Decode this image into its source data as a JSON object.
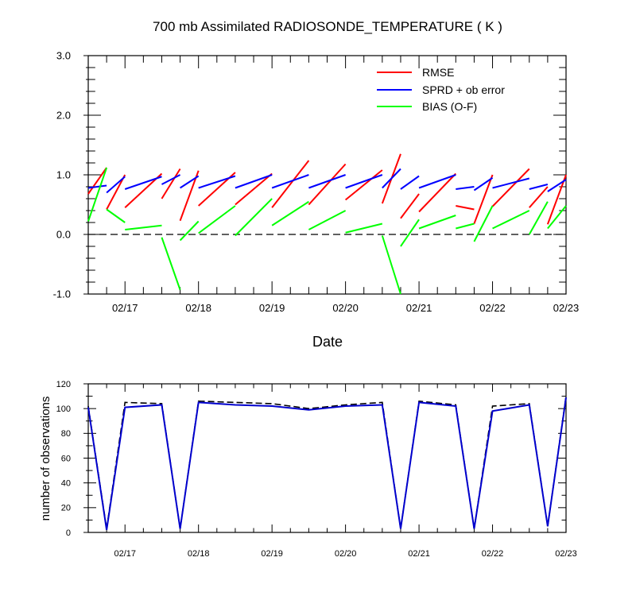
{
  "chart_data": [
    {
      "type": "line",
      "title": "700 mb Assimilated RADIOSONDE_TEMPERATURE ( K )",
      "xlabel": "Date",
      "ylabel": "",
      "xlim": [
        "02/16 12Z",
        "02/23 00Z"
      ],
      "ylim": [
        -1.0,
        3.0
      ],
      "yticks": [
        "-1.0",
        "0.0",
        "1.0",
        "2.0",
        "3.0"
      ],
      "xticks": [
        "02/17",
        "02/18",
        "02/19",
        "02/20",
        "02/21",
        "02/22",
        "02/23"
      ],
      "zero_reference_line": "dashed",
      "legend_position": "top-right",
      "series": [
        {
          "name": "RMSE",
          "color": "#ff0000",
          "segments": [
            {
              "x": [
                "02/16 12Z",
                "02/16 18Z"
              ],
              "y": [
                0.68,
                1.12
              ]
            },
            {
              "x": [
                "02/16 18Z",
                "02/17 00Z"
              ],
              "y": [
                0.42,
                1.0
              ]
            },
            {
              "x": [
                "02/17 00Z",
                "02/17 12Z"
              ],
              "y": [
                0.45,
                1.02
              ]
            },
            {
              "x": [
                "02/17 12Z",
                "02/17 18Z"
              ],
              "y": [
                0.6,
                1.1
              ]
            },
            {
              "x": [
                "02/17 18Z",
                "02/18 00Z"
              ],
              "y": [
                0.23,
                1.07
              ]
            },
            {
              "x": [
                "02/18 00Z",
                "02/18 12Z"
              ],
              "y": [
                0.48,
                1.04
              ]
            },
            {
              "x": [
                "02/18 12Z",
                "02/19 00Z"
              ],
              "y": [
                0.5,
                1.02
              ]
            },
            {
              "x": [
                "02/19 00Z",
                "02/19 12Z"
              ],
              "y": [
                0.45,
                1.24
              ]
            },
            {
              "x": [
                "02/19 12Z",
                "02/20 00Z"
              ],
              "y": [
                0.5,
                1.18
              ]
            },
            {
              "x": [
                "02/20 00Z",
                "02/20 12Z"
              ],
              "y": [
                0.58,
                1.08
              ]
            },
            {
              "x": [
                "02/20 12Z",
                "02/20 18Z"
              ],
              "y": [
                0.52,
                1.35
              ]
            },
            {
              "x": [
                "02/20 18Z",
                "02/21 00Z"
              ],
              "y": [
                0.27,
                0.68
              ]
            },
            {
              "x": [
                "02/21 00Z",
                "02/21 12Z"
              ],
              "y": [
                0.38,
                1.02
              ]
            },
            {
              "x": [
                "02/21 12Z",
                "02/21 18Z"
              ],
              "y": [
                0.48,
                0.42
              ]
            },
            {
              "x": [
                "02/21 18Z",
                "02/22 00Z"
              ],
              "y": [
                0.18,
                1.0
              ]
            },
            {
              "x": [
                "02/22 00Z",
                "02/22 12Z"
              ],
              "y": [
                0.47,
                1.1
              ]
            },
            {
              "x": [
                "02/22 12Z",
                "02/22 18Z"
              ],
              "y": [
                0.45,
                0.8
              ]
            },
            {
              "x": [
                "02/22 18Z",
                "02/23 00Z"
              ],
              "y": [
                0.17,
                1.0
              ]
            }
          ]
        },
        {
          "name": "SPRD + ob error",
          "color": "#0000ff",
          "segments": [
            {
              "x": [
                "02/16 12Z",
                "02/16 18Z"
              ],
              "y": [
                0.78,
                0.82
              ]
            },
            {
              "x": [
                "02/16 18Z",
                "02/17 00Z"
              ],
              "y": [
                0.7,
                0.97
              ]
            },
            {
              "x": [
                "02/17 00Z",
                "02/17 12Z"
              ],
              "y": [
                0.76,
                0.97
              ]
            },
            {
              "x": [
                "02/17 12Z",
                "02/17 18Z"
              ],
              "y": [
                0.84,
                1.0
              ]
            },
            {
              "x": [
                "02/17 18Z",
                "02/18 00Z"
              ],
              "y": [
                0.78,
                0.98
              ]
            },
            {
              "x": [
                "02/18 00Z",
                "02/18 12Z"
              ],
              "y": [
                0.78,
                0.98
              ]
            },
            {
              "x": [
                "02/18 12Z",
                "02/19 00Z"
              ],
              "y": [
                0.78,
                1.0
              ]
            },
            {
              "x": [
                "02/19 00Z",
                "02/19 12Z"
              ],
              "y": [
                0.78,
                1.0
              ]
            },
            {
              "x": [
                "02/19 12Z",
                "02/20 00Z"
              ],
              "y": [
                0.78,
                1.0
              ]
            },
            {
              "x": [
                "02/20 00Z",
                "02/20 12Z"
              ],
              "y": [
                0.78,
                1.0
              ]
            },
            {
              "x": [
                "02/20 12Z",
                "02/20 18Z"
              ],
              "y": [
                0.78,
                1.1
              ]
            },
            {
              "x": [
                "02/20 18Z",
                "02/21 00Z"
              ],
              "y": [
                0.76,
                0.98
              ]
            },
            {
              "x": [
                "02/21 00Z",
                "02/21 12Z"
              ],
              "y": [
                0.78,
                1.0
              ]
            },
            {
              "x": [
                "02/21 12Z",
                "02/21 18Z"
              ],
              "y": [
                0.76,
                0.8
              ]
            },
            {
              "x": [
                "02/21 18Z",
                "02/22 00Z"
              ],
              "y": [
                0.74,
                0.95
              ]
            },
            {
              "x": [
                "02/22 00Z",
                "02/22 12Z"
              ],
              "y": [
                0.78,
                0.94
              ]
            },
            {
              "x": [
                "02/22 12Z",
                "02/22 18Z"
              ],
              "y": [
                0.76,
                0.84
              ]
            },
            {
              "x": [
                "02/22 18Z",
                "02/23 00Z"
              ],
              "y": [
                0.72,
                0.92
              ]
            }
          ]
        },
        {
          "name": "BIAS (O-F)",
          "color": "#00ff00",
          "segments": [
            {
              "x": [
                "02/16 12Z",
                "02/16 18Z"
              ],
              "y": [
                0.22,
                1.12
              ]
            },
            {
              "x": [
                "02/16 18Z",
                "02/17 00Z"
              ],
              "y": [
                0.42,
                0.2
              ]
            },
            {
              "x": [
                "02/17 00Z",
                "02/17 12Z"
              ],
              "y": [
                0.08,
                0.15
              ]
            },
            {
              "x": [
                "02/17 12Z",
                "02/17 18Z"
              ],
              "y": [
                -0.05,
                -0.93
              ]
            },
            {
              "x": [
                "02/17 18Z",
                "02/18 00Z"
              ],
              "y": [
                -0.1,
                0.22
              ]
            },
            {
              "x": [
                "02/18 00Z",
                "02/18 12Z"
              ],
              "y": [
                0.02,
                0.48
              ]
            },
            {
              "x": [
                "02/18 12Z",
                "02/19 00Z"
              ],
              "y": [
                -0.02,
                0.6
              ]
            },
            {
              "x": [
                "02/19 00Z",
                "02/19 12Z"
              ],
              "y": [
                0.15,
                0.55
              ]
            },
            {
              "x": [
                "02/19 12Z",
                "02/20 00Z"
              ],
              "y": [
                0.08,
                0.4
              ]
            },
            {
              "x": [
                "02/20 00Z",
                "02/20 12Z"
              ],
              "y": [
                0.03,
                0.18
              ]
            },
            {
              "x": [
                "02/20 12Z",
                "02/20 18Z"
              ],
              "y": [
                -0.02,
                -1.0
              ]
            },
            {
              "x": [
                "02/20 18Z",
                "02/21 00Z"
              ],
              "y": [
                -0.2,
                0.25
              ]
            },
            {
              "x": [
                "02/21 00Z",
                "02/21 12Z"
              ],
              "y": [
                0.1,
                0.32
              ]
            },
            {
              "x": [
                "02/21 12Z",
                "02/21 18Z"
              ],
              "y": [
                0.1,
                0.18
              ]
            },
            {
              "x": [
                "02/21 18Z",
                "02/22 00Z"
              ],
              "y": [
                -0.12,
                0.48
              ]
            },
            {
              "x": [
                "02/22 00Z",
                "02/22 12Z"
              ],
              "y": [
                0.1,
                0.4
              ]
            },
            {
              "x": [
                "02/22 12Z",
                "02/22 18Z"
              ],
              "y": [
                0.0,
                0.55
              ]
            },
            {
              "x": [
                "02/22 18Z",
                "02/23 00Z"
              ],
              "y": [
                0.1,
                0.48
              ]
            }
          ]
        }
      ]
    },
    {
      "type": "line",
      "title": "",
      "xlabel": "",
      "ylabel": "number of observations",
      "xlim": [
        "02/16 12Z",
        "02/23 00Z"
      ],
      "ylim": [
        0,
        120
      ],
      "yticks": [
        "0",
        "20",
        "40",
        "60",
        "80",
        "100",
        "120"
      ],
      "xticks": [
        "02/17",
        "02/18",
        "02/19",
        "02/20",
        "02/21",
        "02/22",
        "02/23"
      ],
      "series": [
        {
          "style": "dashed",
          "color": "#000000",
          "x": [
            "02/16 12Z",
            "02/16 18Z",
            "02/17 00Z",
            "02/17 12Z",
            "02/17 18Z",
            "02/18 00Z",
            "02/18 12Z",
            "02/19 00Z",
            "02/19 12Z",
            "02/20 00Z",
            "02/20 12Z",
            "02/20 18Z",
            "02/21 00Z",
            "02/21 12Z",
            "02/21 18Z",
            "02/22 00Z",
            "02/22 12Z",
            "02/22 18Z",
            "02/23 00Z"
          ],
          "y": [
            102,
            3,
            105,
            104,
            3,
            106,
            105,
            104,
            100,
            103,
            105,
            3,
            106,
            103,
            3,
            102,
            104,
            5,
            110
          ]
        },
        {
          "style": "solid",
          "color": "#0000cd",
          "x": [
            "02/16 12Z",
            "02/16 18Z",
            "02/17 00Z",
            "02/17 12Z",
            "02/17 18Z",
            "02/18 00Z",
            "02/18 12Z",
            "02/19 00Z",
            "02/19 12Z",
            "02/20 00Z",
            "02/20 12Z",
            "02/20 18Z",
            "02/21 00Z",
            "02/21 12Z",
            "02/21 18Z",
            "02/22 00Z",
            "02/22 12Z",
            "02/22 18Z",
            "02/23 00Z"
          ],
          "y": [
            101,
            2,
            101,
            103,
            3,
            105,
            103,
            102,
            99,
            102,
            103,
            3,
            105,
            102,
            3,
            98,
            103,
            5,
            109
          ]
        }
      ]
    }
  ]
}
